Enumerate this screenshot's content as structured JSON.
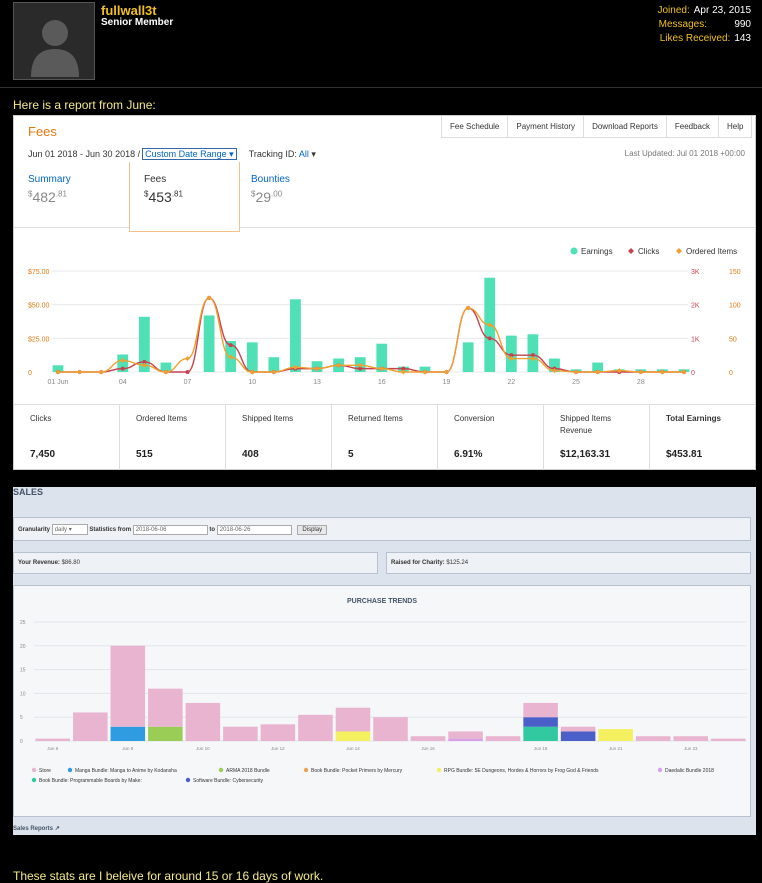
{
  "user": {
    "name": "fullwall3t",
    "title": "Senior Member",
    "stats": [
      {
        "label": "Joined:",
        "value": "Apr 23, 2015"
      },
      {
        "label": "Messages:",
        "value": "990"
      },
      {
        "label": "Likes Received:",
        "value": "143"
      }
    ]
  },
  "post": {
    "intro": "Here is a report from June:",
    "outro": "These stats are I beleive for around 15 or 16 days of work."
  },
  "amazon": {
    "title": "Fees",
    "nav": [
      "Fee Schedule",
      "Payment History",
      "Download Reports",
      "Feedback",
      "Help"
    ],
    "date_range": "Jun 01 2018 - Jun 30 2018 /",
    "date_select": "Custom Date Range",
    "tracking_label": "Tracking ID:",
    "tracking_value": "All",
    "last_updated": "Last Updated: Jul 01 2018 +00:00",
    "summary": [
      {
        "label": "Summary",
        "dollars": "482",
        "cents": ".81"
      },
      {
        "label": "Fees",
        "dollars": "453",
        "cents": ".81"
      },
      {
        "label": "Bounties",
        "dollars": "29",
        "cents": ".00"
      }
    ],
    "legend": [
      "Earnings",
      "Clicks",
      "Ordered Items"
    ],
    "totals": [
      {
        "label": "Clicks",
        "value": "7,450"
      },
      {
        "label": "Ordered Items",
        "value": "515"
      },
      {
        "label": "Shipped Items",
        "value": "408"
      },
      {
        "label": "Returned Items",
        "value": "5"
      },
      {
        "label": "Conversion",
        "value": "6.91%"
      },
      {
        "label": "Shipped Items Revenue",
        "value": "$12,163.31"
      },
      {
        "label": "Total Earnings",
        "value": "$453.81"
      }
    ]
  },
  "sales": {
    "title": "SALES",
    "granularity_label": "Granularity",
    "granularity_value": "daily",
    "stats_from_label": "Statistics from",
    "from_value": "2018-06-06",
    "to_label": "to",
    "to_value": "2018-06-26",
    "display_button": "Display",
    "revenue_label": "Your Revenue:",
    "revenue_value": "$86.80",
    "charity_label": "Raised for Charity:",
    "charity_value": "$125.24",
    "chart_title": "PURCHASE TRENDS",
    "reports_link": "Sales Reports"
  },
  "chart_data": [
    {
      "type": "bar",
      "x_ticks": [
        "01 Jun",
        "04",
        "07",
        "10",
        "13",
        "16",
        "19",
        "22",
        "25",
        "28"
      ],
      "y_left_ticks": [
        "$75.00",
        "$50.00",
        "$25.00",
        "0"
      ],
      "y_right_ticks_clicks": [
        "3K",
        "2K",
        "1K",
        "0"
      ],
      "y_right_ticks_items": [
        "150",
        "100",
        "50",
        "0"
      ],
      "ylim": [
        0,
        75
      ],
      "series": [
        {
          "name": "Earnings",
          "color": "#4fe0b6",
          "values": [
            5,
            0,
            0,
            13,
            41,
            7,
            0,
            42,
            23,
            22,
            11,
            54,
            8,
            10,
            11,
            21,
            4,
            4,
            0,
            22,
            70,
            27,
            28,
            10,
            2,
            7,
            2,
            2,
            2,
            2
          ]
        },
        {
          "name": "Clicks",
          "color": "#c7424f",
          "values": [
            0,
            0,
            0,
            100,
            300,
            0,
            0,
            2200,
            800,
            0,
            0,
            100,
            100,
            200,
            100,
            100,
            100,
            0,
            0,
            1900,
            1000,
            500,
            500,
            100,
            0,
            0,
            0,
            0,
            0,
            0
          ]
        },
        {
          "name": "Ordered Items",
          "color": "#f0a030",
          "values": [
            0,
            0,
            0,
            17,
            10,
            0,
            20,
            110,
            22,
            0,
            0,
            7,
            5,
            10,
            10,
            5,
            0,
            0,
            0,
            95,
            70,
            20,
            20,
            2,
            0,
            0,
            2,
            0,
            0,
            0
          ]
        }
      ]
    },
    {
      "type": "bar",
      "title": "PURCHASE TRENDS",
      "categories": [
        "Jun 6",
        "Jun 7",
        "Jun 8",
        "Jun 9",
        "Jun 10",
        "Jun 11",
        "Jun 12",
        "Jun 13",
        "Jun 14",
        "Jun 15",
        "Jun 16",
        "Jun 17",
        "Jun 18",
        "Jun 19",
        "Jun 20",
        "Jun 21",
        "Jun 22",
        "Jun 23",
        "Jun 24"
      ],
      "x_ticks": [
        "Jun 6",
        "Jun 8",
        "Jun 10",
        "Jun 12",
        "Jun 14",
        "Jun 16",
        "Jun 19",
        "Jun 21",
        "Jun 23"
      ],
      "y_ticks": [
        "25",
        "20",
        "15",
        "10",
        "5",
        "0"
      ],
      "ylim": [
        0,
        25
      ],
      "series": [
        {
          "name": "Store",
          "color": "#e8b4d0",
          "values": [
            0.5,
            6,
            17,
            8,
            8,
            3,
            3.5,
            5.5,
            5,
            5,
            1,
            1.5,
            1,
            3,
            1,
            0,
            1,
            1,
            0.5
          ]
        },
        {
          "name": "Manga Bundle: Manga to Anime by Kodansha",
          "color": "#2f9be0",
          "values": [
            0,
            0,
            3,
            0,
            0,
            0,
            0,
            0,
            0,
            0,
            0,
            0,
            0,
            0,
            0,
            0,
            0,
            0,
            0
          ]
        },
        {
          "name": "ARMA 2018 Bundle",
          "color": "#9acd56",
          "values": [
            0,
            0,
            0,
            3,
            0,
            0,
            0,
            0,
            0,
            0,
            0,
            0,
            0,
            0,
            0,
            0,
            0,
            0,
            0
          ]
        },
        {
          "name": "Book Bundle: Pocket Primers by Mercury",
          "color": "#f0a050",
          "values": [
            0,
            0,
            0,
            0,
            0,
            0,
            0,
            0,
            0,
            0,
            0,
            0,
            0,
            0,
            0,
            0,
            0,
            0,
            0
          ]
        },
        {
          "name": "RPG Bundle: 5E Dungeons, Hordes & Horrors by Frog God & Friends",
          "color": "#f4f060",
          "values": [
            0,
            0,
            0,
            0,
            0,
            0,
            0,
            0,
            2,
            0,
            0,
            0,
            0,
            0,
            0,
            2.5,
            0,
            0,
            0
          ]
        },
        {
          "name": "Daedalic Bundle 2018",
          "color": "#d8a0e8",
          "values": [
            0,
            0,
            0,
            0,
            0,
            0,
            0,
            0,
            0,
            0,
            0,
            0.5,
            0,
            0,
            0,
            0,
            0,
            0,
            0
          ]
        },
        {
          "name": "Book Bundle: Programmable Boards by Make:",
          "color": "#32c8a0",
          "values": [
            0,
            0,
            0,
            0,
            0,
            0,
            0,
            0,
            0,
            0,
            0,
            0,
            0,
            3,
            0,
            0,
            0,
            0,
            0
          ]
        },
        {
          "name": "Software Bundle: Cybersecurity",
          "color": "#4a5fc8",
          "values": [
            0,
            0,
            0,
            0,
            0,
            0,
            0,
            0,
            0,
            0,
            0,
            0,
            0,
            2,
            2,
            0,
            0,
            0,
            0
          ]
        }
      ]
    }
  ]
}
